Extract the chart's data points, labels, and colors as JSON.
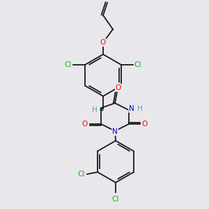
{
  "background_color": "#e8e8ec",
  "bond_color": "#1a1a1a",
  "atom_colors": {
    "Cl": "#00bb00",
    "O": "#ff0000",
    "N": "#0000ee",
    "H": "#44aaaa",
    "C": "#1a1a1a"
  },
  "figsize": [
    3.0,
    3.0
  ],
  "dpi": 100
}
